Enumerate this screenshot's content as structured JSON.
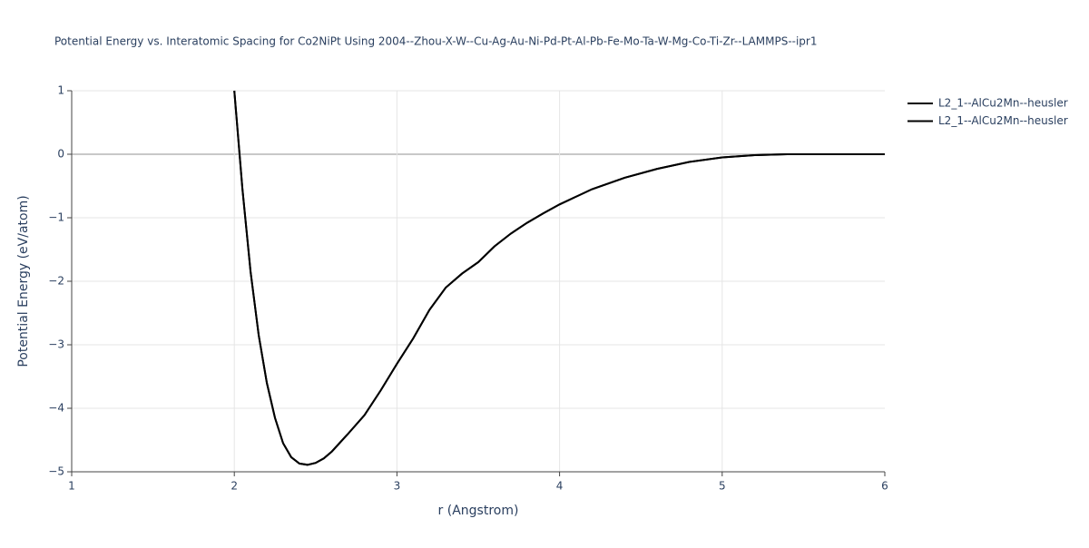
{
  "chart_data": {
    "type": "line",
    "title": "Potential Energy vs. Interatomic Spacing for Co2NiPt Using 2004--Zhou-X-W--Cu-Ag-Au-Ni-Pd-Pt-Al-Pb-Fe-Mo-Ta-W-Mg-Co-Ti-Zr--LAMMPS--ipr1",
    "x_label": "r (Angstrom)",
    "y_label": "Potential Energy (eV/atom)",
    "x": [
      2.0,
      2.05,
      2.1,
      2.15,
      2.2,
      2.25,
      2.3,
      2.35,
      2.4,
      2.45,
      2.5,
      2.55,
      2.6,
      2.7,
      2.8,
      2.9,
      3.0,
      3.1,
      3.2,
      3.3,
      3.4,
      3.5,
      3.6,
      3.7,
      3.8,
      3.9,
      4.0,
      4.2,
      4.4,
      4.6,
      4.8,
      5.0,
      5.2,
      5.4,
      5.6,
      5.8,
      6.0
    ],
    "series": [
      {
        "name": "L2_1--AlCu2Mn--heusler",
        "color": "#000000",
        "values": [
          1.0,
          -0.55,
          -1.85,
          -2.85,
          -3.6,
          -4.15,
          -4.55,
          -4.77,
          -4.87,
          -4.89,
          -4.86,
          -4.79,
          -4.68,
          -4.4,
          -4.11,
          -3.72,
          -3.3,
          -2.9,
          -2.45,
          -2.1,
          -1.88,
          -1.7,
          -1.45,
          -1.25,
          -1.08,
          -0.93,
          -0.79,
          -0.55,
          -0.37,
          -0.23,
          -0.12,
          -0.05,
          -0.015,
          0,
          0,
          0,
          0
        ]
      },
      {
        "name": "L2_1--AlCu2Mn--heusler",
        "color": "#000000",
        "values": [
          1.0,
          -0.55,
          -1.85,
          -2.85,
          -3.6,
          -4.15,
          -4.55,
          -4.77,
          -4.87,
          -4.89,
          -4.86,
          -4.79,
          -4.68,
          -4.4,
          -4.11,
          -3.72,
          -3.3,
          -2.9,
          -2.45,
          -2.1,
          -1.88,
          -1.7,
          -1.45,
          -1.25,
          -1.08,
          -0.93,
          -0.79,
          -0.55,
          -0.37,
          -0.23,
          -0.12,
          -0.05,
          -0.015,
          0,
          0,
          0,
          0
        ]
      }
    ],
    "xlim": [
      1,
      6
    ],
    "xticks": [
      1,
      2,
      3,
      4,
      5,
      6
    ],
    "ylim": [
      -5,
      1
    ],
    "yticks": [
      {
        "value": -5,
        "label": "−5"
      },
      {
        "value": -4,
        "label": "−4"
      },
      {
        "value": -3,
        "label": "−3"
      },
      {
        "value": -2,
        "label": "−2"
      },
      {
        "value": -1,
        "label": "−1"
      },
      0,
      1
    ],
    "grid": true,
    "legend": "right"
  }
}
